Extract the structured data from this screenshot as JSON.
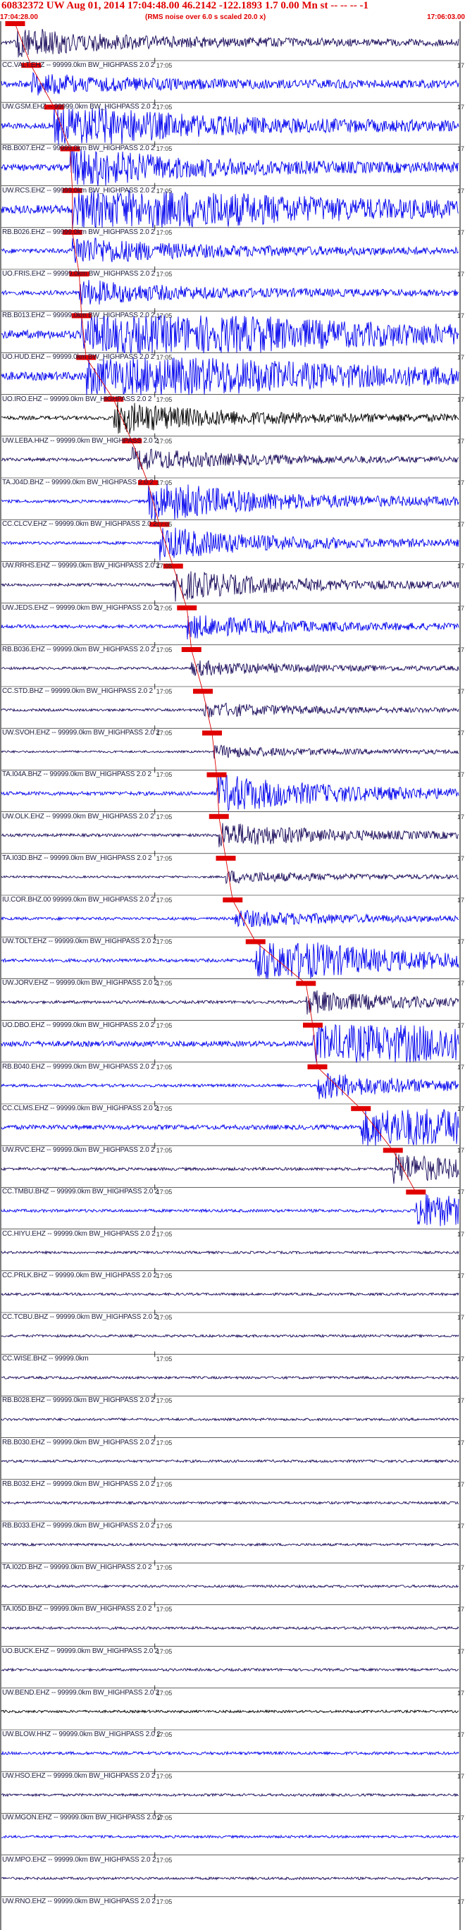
{
  "header": {
    "title": "60832372 UW Aug 01, 2014 17:04:48.00    46.2142  -122.1893   1.7 0.00 Mn st -- -- --  -1",
    "start_time": "17:04:28.00",
    "end_time": "17:06:03.00",
    "noise_note": "(RMS noise over 6.0 s scaled 20.0 x)"
  },
  "minute_tick_label": "17:05",
  "edge_tick_label": "17",
  "colors": {
    "header_red": "#e00000",
    "trace_blue": "#0000ee",
    "trace_navy": "#1a0a5a",
    "trace_black": "#000000",
    "pick_red": "#e00000",
    "axis_black": "#000000"
  },
  "channels": [
    {
      "label": "CC.VALT.EHZ -- 99999.0km BW_HIGHPASS  2.0  2",
      "color": "navy",
      "pick": 0.03,
      "event": 0.32,
      "amp": 0.55
    },
    {
      "label": "UW.GSM.EHZ -- 99999.0km BW_HIGHPASS  2.0  2",
      "color": "blue",
      "pick": 0.065,
      "event": 0.15,
      "amp": 0.75
    },
    {
      "label": "RB.B007.EHZ -- 99999.0km BW_HIGHPASS  2.0  2",
      "color": "blue",
      "pick": 0.115,
      "event": 0.5,
      "amp": 0.7
    },
    {
      "label": "UW.RCS.EHZ -- 99999.0km BW_HIGHPASS  2.0  2",
      "color": "blue",
      "pick": 0.15,
      "event": 0.35,
      "amp": 0.75
    },
    {
      "label": "RB.B026.EHZ -- 99999.0km BW_HIGHPASS  2.0  2",
      "color": "blue",
      "pick": 0.155,
      "event": 0.62,
      "amp": 1.0
    },
    {
      "label": "UO.FRIS.EHZ -- 99999.0km BW_HIGHPASS  2.0  2",
      "color": "blue",
      "pick": 0.155,
      "event": 0.32,
      "amp": 0.55
    },
    {
      "label": "RB.B013.EHZ -- 99999.0km BW_HIGHPASS  2.0  2",
      "color": "blue",
      "pick": 0.17,
      "event": 0.3,
      "amp": 0.5
    },
    {
      "label": "UO.HUD.EHZ -- 99999.0km BW_HIGHPASS  2.0  2",
      "color": "blue",
      "pick": 0.175,
      "event": 0.75,
      "amp": 1.0
    },
    {
      "label": "UO.IRO.EHZ -- 99999.0km BW_HIGHPASS  2.0  2",
      "color": "blue",
      "pick": 0.185,
      "event": 0.62,
      "amp": 1.0
    },
    {
      "label": "UW.LEBA.HHZ -- 99999.0km BW_HIGHPASS  2.0  2",
      "color": "black",
      "pick": 0.245,
      "event": 0.45,
      "amp": 0.45
    },
    {
      "label": "TA.J04D.BHZ -- 99999.0km BW_HIGHPASS  2.0  2",
      "color": "navy",
      "pick": 0.285,
      "event": 0.35,
      "amp": 0.4
    },
    {
      "label": "CC.CLCV.EHZ -- 99999.0km BW_HIGHPASS  2.0  2",
      "color": "blue",
      "pick": 0.32,
      "event": 0.8,
      "amp": 0.35
    },
    {
      "label": "UW.RRHS.EHZ -- 99999.0km BW_HIGHPASS  2.0  2",
      "color": "blue",
      "pick": 0.345,
      "event": 0.6,
      "amp": 0.35
    },
    {
      "label": "UW.JEDS.EHZ -- 99999.0km BW_HIGHPASS  2.0  2",
      "color": "navy",
      "pick": 0.375,
      "event": 0.55,
      "amp": 0.35
    },
    {
      "label": "RB.B036.EHZ -- 99999.0km BW_HIGHPASS  2.0  2",
      "color": "blue",
      "pick": 0.405,
      "event": 0.35,
      "amp": 0.4
    },
    {
      "label": "CC.STD.BHZ -- 99999.0km BW_HIGHPASS  2.0  2",
      "color": "navy",
      "pick": 0.415,
      "event": 0.3,
      "amp": 0.3
    },
    {
      "label": "UW.SVOH.EHZ -- 99999.0km BW_HIGHPASS  2.0  2",
      "color": "navy",
      "pick": 0.44,
      "event": 0.3,
      "amp": 0.3
    },
    {
      "label": "TA.I04A.BHZ -- 99999.0km BW_HIGHPASS  2.0  2",
      "color": "navy",
      "pick": 0.46,
      "event": 0.3,
      "amp": 0.25
    },
    {
      "label": "UW.OLK.EHZ -- 99999.0km BW_HIGHPASS  2.0  2",
      "color": "blue",
      "pick": 0.47,
      "event": 0.55,
      "amp": 0.45
    },
    {
      "label": "TA.I03D.BHZ -- 99999.0km BW_HIGHPASS  2.0  2",
      "color": "navy",
      "pick": 0.475,
      "event": 0.45,
      "amp": 0.35
    },
    {
      "label": "IU.COR.BHZ.00 99999.0km BW_HIGHPASS  2.0  2",
      "color": "navy",
      "pick": 0.49,
      "event": 0.3,
      "amp": 0.25
    },
    {
      "label": "UW.TOLT.EHZ -- 99999.0km BW_HIGHPASS  2.0  2",
      "color": "blue",
      "pick": 0.505,
      "event": 0.3,
      "amp": 0.35
    },
    {
      "label": "UW.JORV.EHZ -- 99999.0km BW_HIGHPASS  2.0  2",
      "color": "blue",
      "pick": 0.555,
      "event": 0.9,
      "amp": 0.4
    },
    {
      "label": "UO.DBO.EHZ -- 99999.0km BW_HIGHPASS  2.0  2",
      "color": "navy",
      "pick": 0.665,
      "event": 0.4,
      "amp": 0.35
    },
    {
      "label": "RB.B040.EHZ -- 99999.0km BW_HIGHPASS  2.0  2",
      "color": "blue",
      "pick": 0.68,
      "event": 0.9,
      "amp": 0.65
    },
    {
      "label": "CC.CLMS.EHZ -- 99999.0km BW_HIGHPASS  2.0  2",
      "color": "blue",
      "pick": 0.69,
      "event": 0.45,
      "amp": 0.35
    },
    {
      "label": "UW.RVC.EHZ -- 99999.0km BW_HIGHPASS  2.0  2",
      "color": "blue",
      "pick": 0.785,
      "event": 0.9,
      "amp": 0.55
    },
    {
      "label": "CC.TMBU.BHZ -- 99999.0km BW_HIGHPASS  2.0  2",
      "color": "navy",
      "pick": 0.855,
      "event": 0.55,
      "amp": 0.35
    },
    {
      "label": "CC.HIYU.EHZ -- 99999.0km BW_HIGHPASS  2.0  2",
      "color": "blue",
      "pick": 0.905,
      "event": 0.65,
      "amp": 0.35
    },
    {
      "label": "CC.PRLK.BHZ -- 99999.0km BW_HIGHPASS  2.0  2",
      "color": "navy",
      "pick": null,
      "event": 0.0,
      "amp": 0.3
    },
    {
      "label": "CC.TCBU.BHZ -- 99999.0km BW_HIGHPASS  2.0  2",
      "color": "navy",
      "pick": null,
      "event": 0.0,
      "amp": 0.3
    },
    {
      "label": "CC.WISE.BHZ -- 99999.0km",
      "color": "navy",
      "pick": null,
      "event": 0.0,
      "amp": 0.3
    },
    {
      "label": "RB.B028.EHZ -- 99999.0km BW_HIGHPASS  2.0  2",
      "color": "navy",
      "pick": null,
      "event": 0.0,
      "amp": 0.3
    },
    {
      "label": "RB.B030.EHZ -- 99999.0km BW_HIGHPASS  2.0  2",
      "color": "navy",
      "pick": null,
      "event": 0.0,
      "amp": 0.3
    },
    {
      "label": "RB.B032.EHZ -- 99999.0km BW_HIGHPASS  2.0  2",
      "color": "navy",
      "pick": null,
      "event": 0.0,
      "amp": 0.3
    },
    {
      "label": "RB.B033.EHZ -- 99999.0km BW_HIGHPASS  2.0  2",
      "color": "navy",
      "pick": null,
      "event": 0.0,
      "amp": 0.3
    },
    {
      "label": "TA.I02D.BHZ -- 99999.0km BW_HIGHPASS  2.0  2",
      "color": "navy",
      "pick": null,
      "event": 0.0,
      "amp": 0.3
    },
    {
      "label": "TA.I05D.BHZ -- 99999.0km BW_HIGHPASS  2.0  2",
      "color": "navy",
      "pick": null,
      "event": 0.0,
      "amp": 0.3
    },
    {
      "label": "UO.BUCK.EHZ -- 99999.0km BW_HIGHPASS  2.0  2",
      "color": "navy",
      "pick": null,
      "event": 0.0,
      "amp": 0.3
    },
    {
      "label": "UW.BEND.EHZ -- 99999.0km BW_HIGHPASS  2.0  2",
      "color": "navy",
      "pick": null,
      "event": 0.0,
      "amp": 0.3
    },
    {
      "label": "UW.BLOW.HHZ -- 99999.0km BW_HIGHPASS  2.0  2",
      "color": "black",
      "pick": null,
      "event": 0.0,
      "amp": 0.3
    },
    {
      "label": "UW.HSO.EHZ -- 99999.0km BW_HIGHPASS  2.0  2",
      "color": "blue",
      "pick": null,
      "event": 0.0,
      "amp": 0.35
    },
    {
      "label": "UW.MGON.EHZ -- 99999.0km BW_HIGHPASS  2.0  2",
      "color": "navy",
      "pick": null,
      "event": 0.0,
      "amp": 0.3
    },
    {
      "label": "UW.MPO.EHZ -- 99999.0km BW_HIGHPASS  2.0  2",
      "color": "blue",
      "pick": null,
      "event": 0.0,
      "amp": 0.3
    },
    {
      "label": "UW.RNO.EHZ -- 99999.0km BW_HIGHPASS  2.0  2",
      "color": "navy",
      "pick": null,
      "event": 0.0,
      "amp": 0.3
    }
  ]
}
